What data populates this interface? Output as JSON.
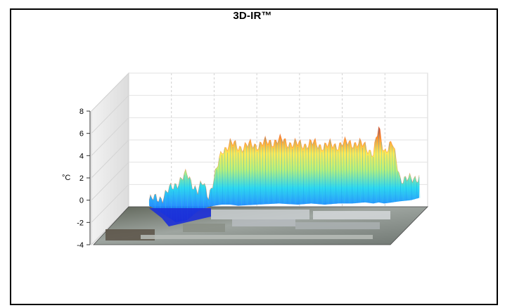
{
  "title": "3D-IR™",
  "chart_data": {
    "type": "3d-surface",
    "title": "3D-IR™",
    "ylabel": "°C",
    "zlim": [
      -4,
      8
    ],
    "z_ticks": [
      -4,
      -2,
      0,
      2,
      4,
      6,
      8
    ],
    "grid": true,
    "colorscale": [
      "#0a2bd9",
      "#1f8cff",
      "#22d6f0",
      "#b8f070",
      "#ffe94d",
      "#ff9a2a",
      "#d8321c"
    ],
    "surface_profile": {
      "x_fraction": [
        0.0,
        0.05,
        0.1,
        0.14,
        0.18,
        0.2,
        0.22,
        0.24,
        0.27,
        0.3,
        0.33,
        0.4,
        0.48,
        0.55,
        0.6,
        0.65,
        0.7,
        0.75,
        0.8,
        0.83,
        0.85,
        0.87,
        0.9,
        0.93,
        0.97,
        1.0
      ],
      "max_temp_c": [
        0.0,
        0.3,
        1.5,
        2.3,
        0.8,
        1.5,
        0.5,
        1.8,
        4.5,
        5.1,
        4.8,
        5.0,
        5.4,
        5.0,
        5.1,
        4.9,
        5.0,
        5.2,
        4.9,
        4.2,
        6.4,
        4.5,
        5.1,
        2.0,
        1.8,
        2.2
      ],
      "min_temp_c": [
        -0.5,
        -1.2,
        -2.0,
        -1.8,
        -1.0,
        -0.8,
        -0.6,
        -0.5,
        -0.4,
        -0.4,
        -0.5,
        -0.4,
        -0.3,
        -0.4,
        -0.3,
        -0.4,
        -0.3,
        -0.3,
        -0.2,
        -0.3,
        -0.2,
        -0.3,
        -0.2,
        -0.1,
        0.0,
        0.2
      ]
    }
  }
}
